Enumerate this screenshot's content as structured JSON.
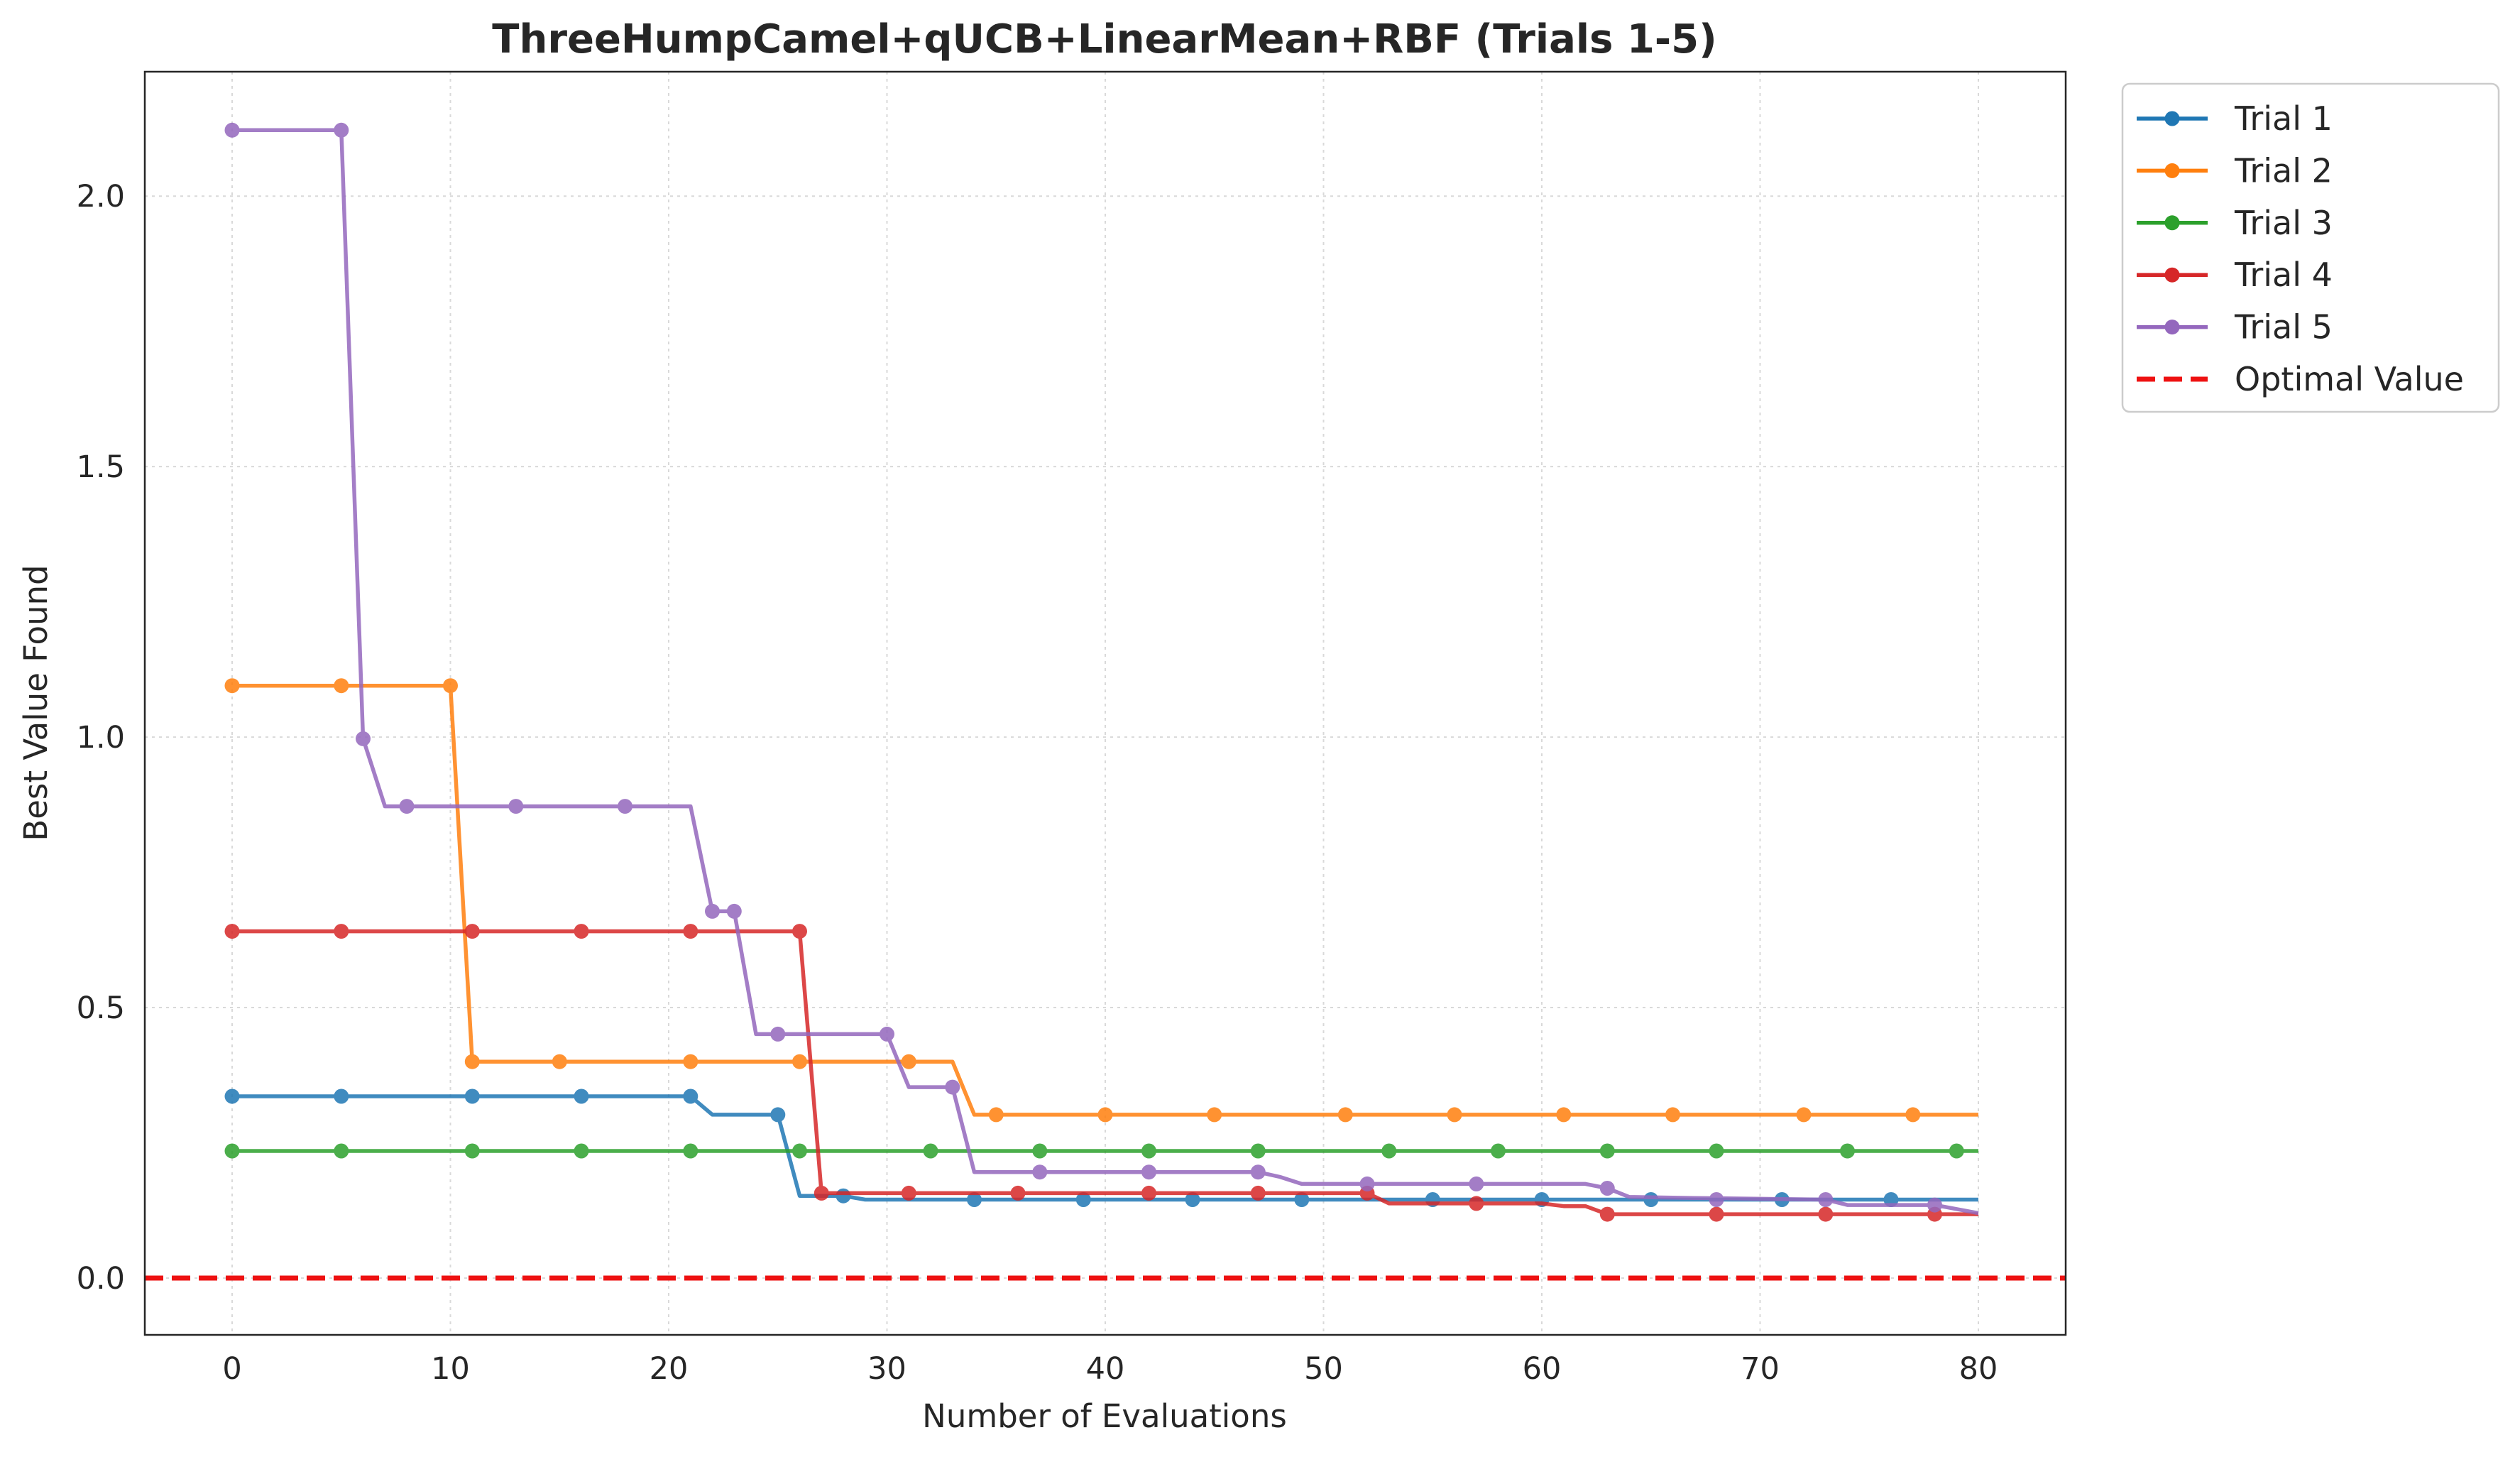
{
  "chart_data": {
    "type": "line",
    "title": "ThreeHumpCamel+qUCB+LinearMean+RBF (Trials 1-5)",
    "xlabel": "Number of Evaluations",
    "ylabel": "Best Value Found",
    "xlim": [
      -4,
      84
    ],
    "ylim": [
      -0.105,
      2.23
    ],
    "xticks": [
      0,
      10,
      20,
      30,
      40,
      50,
      60,
      70,
      80
    ],
    "yticks": [
      0.0,
      0.5,
      1.0,
      1.5,
      2.0
    ],
    "xtick_labels": [
      "0",
      "10",
      "20",
      "30",
      "40",
      "50",
      "60",
      "70",
      "80"
    ],
    "ytick_labels": [
      "0.0",
      "0.5",
      "1.0",
      "1.5",
      "2.0"
    ],
    "grid": true,
    "legend_position": "outside-top-right",
    "series": [
      {
        "name": "Trial 1",
        "color": "#1f77b4",
        "line": [
          [
            0,
            0.336
          ],
          [
            21,
            0.336
          ],
          [
            22,
            0.302
          ],
          [
            25,
            0.302
          ],
          [
            26,
            0.152
          ],
          [
            27,
            0.152
          ],
          [
            28,
            0.152
          ],
          [
            29,
            0.145
          ],
          [
            80,
            0.145
          ]
        ],
        "markers": [
          [
            0,
            0.336
          ],
          [
            5,
            0.336
          ],
          [
            11,
            0.336
          ],
          [
            16,
            0.336
          ],
          [
            21,
            0.336
          ],
          [
            25,
            0.302
          ],
          [
            28,
            0.152
          ],
          [
            34,
            0.145
          ],
          [
            39,
            0.145
          ],
          [
            44,
            0.145
          ],
          [
            49,
            0.145
          ],
          [
            55,
            0.145
          ],
          [
            60,
            0.145
          ],
          [
            65,
            0.145
          ],
          [
            71,
            0.145
          ],
          [
            76,
            0.145
          ]
        ]
      },
      {
        "name": "Trial 2",
        "color": "#ff7f0e",
        "line": [
          [
            0,
            1.095
          ],
          [
            10,
            1.095
          ],
          [
            11,
            0.4
          ],
          [
            33,
            0.4
          ],
          [
            34,
            0.302
          ],
          [
            80,
            0.302
          ]
        ],
        "markers": [
          [
            0,
            1.095
          ],
          [
            5,
            1.095
          ],
          [
            10,
            1.095
          ],
          [
            11,
            0.4
          ],
          [
            15,
            0.4
          ],
          [
            21,
            0.4
          ],
          [
            26,
            0.4
          ],
          [
            31,
            0.4
          ],
          [
            35,
            0.302
          ],
          [
            40,
            0.302
          ],
          [
            45,
            0.302
          ],
          [
            51,
            0.302
          ],
          [
            56,
            0.302
          ],
          [
            61,
            0.302
          ],
          [
            66,
            0.302
          ],
          [
            72,
            0.302
          ],
          [
            77,
            0.302
          ]
        ]
      },
      {
        "name": "Trial 3",
        "color": "#2ca02c",
        "line": [
          [
            0,
            0.235
          ],
          [
            80,
            0.235
          ]
        ],
        "markers": [
          [
            0,
            0.235
          ],
          [
            5,
            0.235
          ],
          [
            11,
            0.235
          ],
          [
            16,
            0.235
          ],
          [
            21,
            0.235
          ],
          [
            26,
            0.235
          ],
          [
            32,
            0.235
          ],
          [
            37,
            0.235
          ],
          [
            42,
            0.235
          ],
          [
            47,
            0.235
          ],
          [
            53,
            0.235
          ],
          [
            58,
            0.235
          ],
          [
            63,
            0.235
          ],
          [
            68,
            0.235
          ],
          [
            74,
            0.235
          ],
          [
            79,
            0.235
          ]
        ]
      },
      {
        "name": "Trial 4",
        "color": "#d62728",
        "line": [
          [
            0,
            0.641
          ],
          [
            26,
            0.641
          ],
          [
            27,
            0.157
          ],
          [
            52,
            0.157
          ],
          [
            53,
            0.138
          ],
          [
            60,
            0.138
          ],
          [
            61,
            0.133
          ],
          [
            62,
            0.133
          ],
          [
            63,
            0.118
          ],
          [
            80,
            0.118
          ]
        ],
        "markers": [
          [
            0,
            0.641
          ],
          [
            5,
            0.641
          ],
          [
            11,
            0.641
          ],
          [
            16,
            0.641
          ],
          [
            21,
            0.641
          ],
          [
            26,
            0.641
          ],
          [
            27,
            0.157
          ],
          [
            31,
            0.157
          ],
          [
            36,
            0.157
          ],
          [
            42,
            0.157
          ],
          [
            47,
            0.157
          ],
          [
            52,
            0.157
          ],
          [
            57,
            0.138
          ],
          [
            63,
            0.118
          ],
          [
            68,
            0.118
          ],
          [
            73,
            0.118
          ],
          [
            78,
            0.118
          ]
        ]
      },
      {
        "name": "Trial 5",
        "color": "#9467bd",
        "line": [
          [
            0,
            2.122
          ],
          [
            5,
            2.122
          ],
          [
            6,
            0.997
          ],
          [
            7,
            0.872
          ],
          [
            21,
            0.872
          ],
          [
            22,
            0.678
          ],
          [
            23,
            0.678
          ],
          [
            24,
            0.451
          ],
          [
            30,
            0.451
          ],
          [
            31,
            0.353
          ],
          [
            33,
            0.353
          ],
          [
            34,
            0.196
          ],
          [
            47,
            0.196
          ],
          [
            48,
            0.187
          ],
          [
            49,
            0.174
          ],
          [
            62,
            0.174
          ],
          [
            63,
            0.166
          ],
          [
            64,
            0.15
          ],
          [
            67,
            0.148
          ],
          [
            73,
            0.145
          ],
          [
            74,
            0.135
          ],
          [
            78,
            0.135
          ],
          [
            80,
            0.12
          ]
        ],
        "markers": [
          [
            0,
            2.122
          ],
          [
            5,
            2.122
          ],
          [
            6,
            0.997
          ],
          [
            8,
            0.872
          ],
          [
            13,
            0.872
          ],
          [
            18,
            0.872
          ],
          [
            22,
            0.678
          ],
          [
            23,
            0.678
          ],
          [
            25,
            0.451
          ],
          [
            30,
            0.451
          ],
          [
            33,
            0.353
          ],
          [
            37,
            0.196
          ],
          [
            42,
            0.196
          ],
          [
            47,
            0.196
          ],
          [
            52,
            0.174
          ],
          [
            57,
            0.174
          ],
          [
            63,
            0.166
          ],
          [
            68,
            0.145
          ],
          [
            73,
            0.145
          ],
          [
            78,
            0.135
          ]
        ]
      }
    ],
    "reference_line": {
      "name": "Optimal Value",
      "y": 0.0,
      "color": "#ee1111",
      "style": "dashed"
    }
  }
}
